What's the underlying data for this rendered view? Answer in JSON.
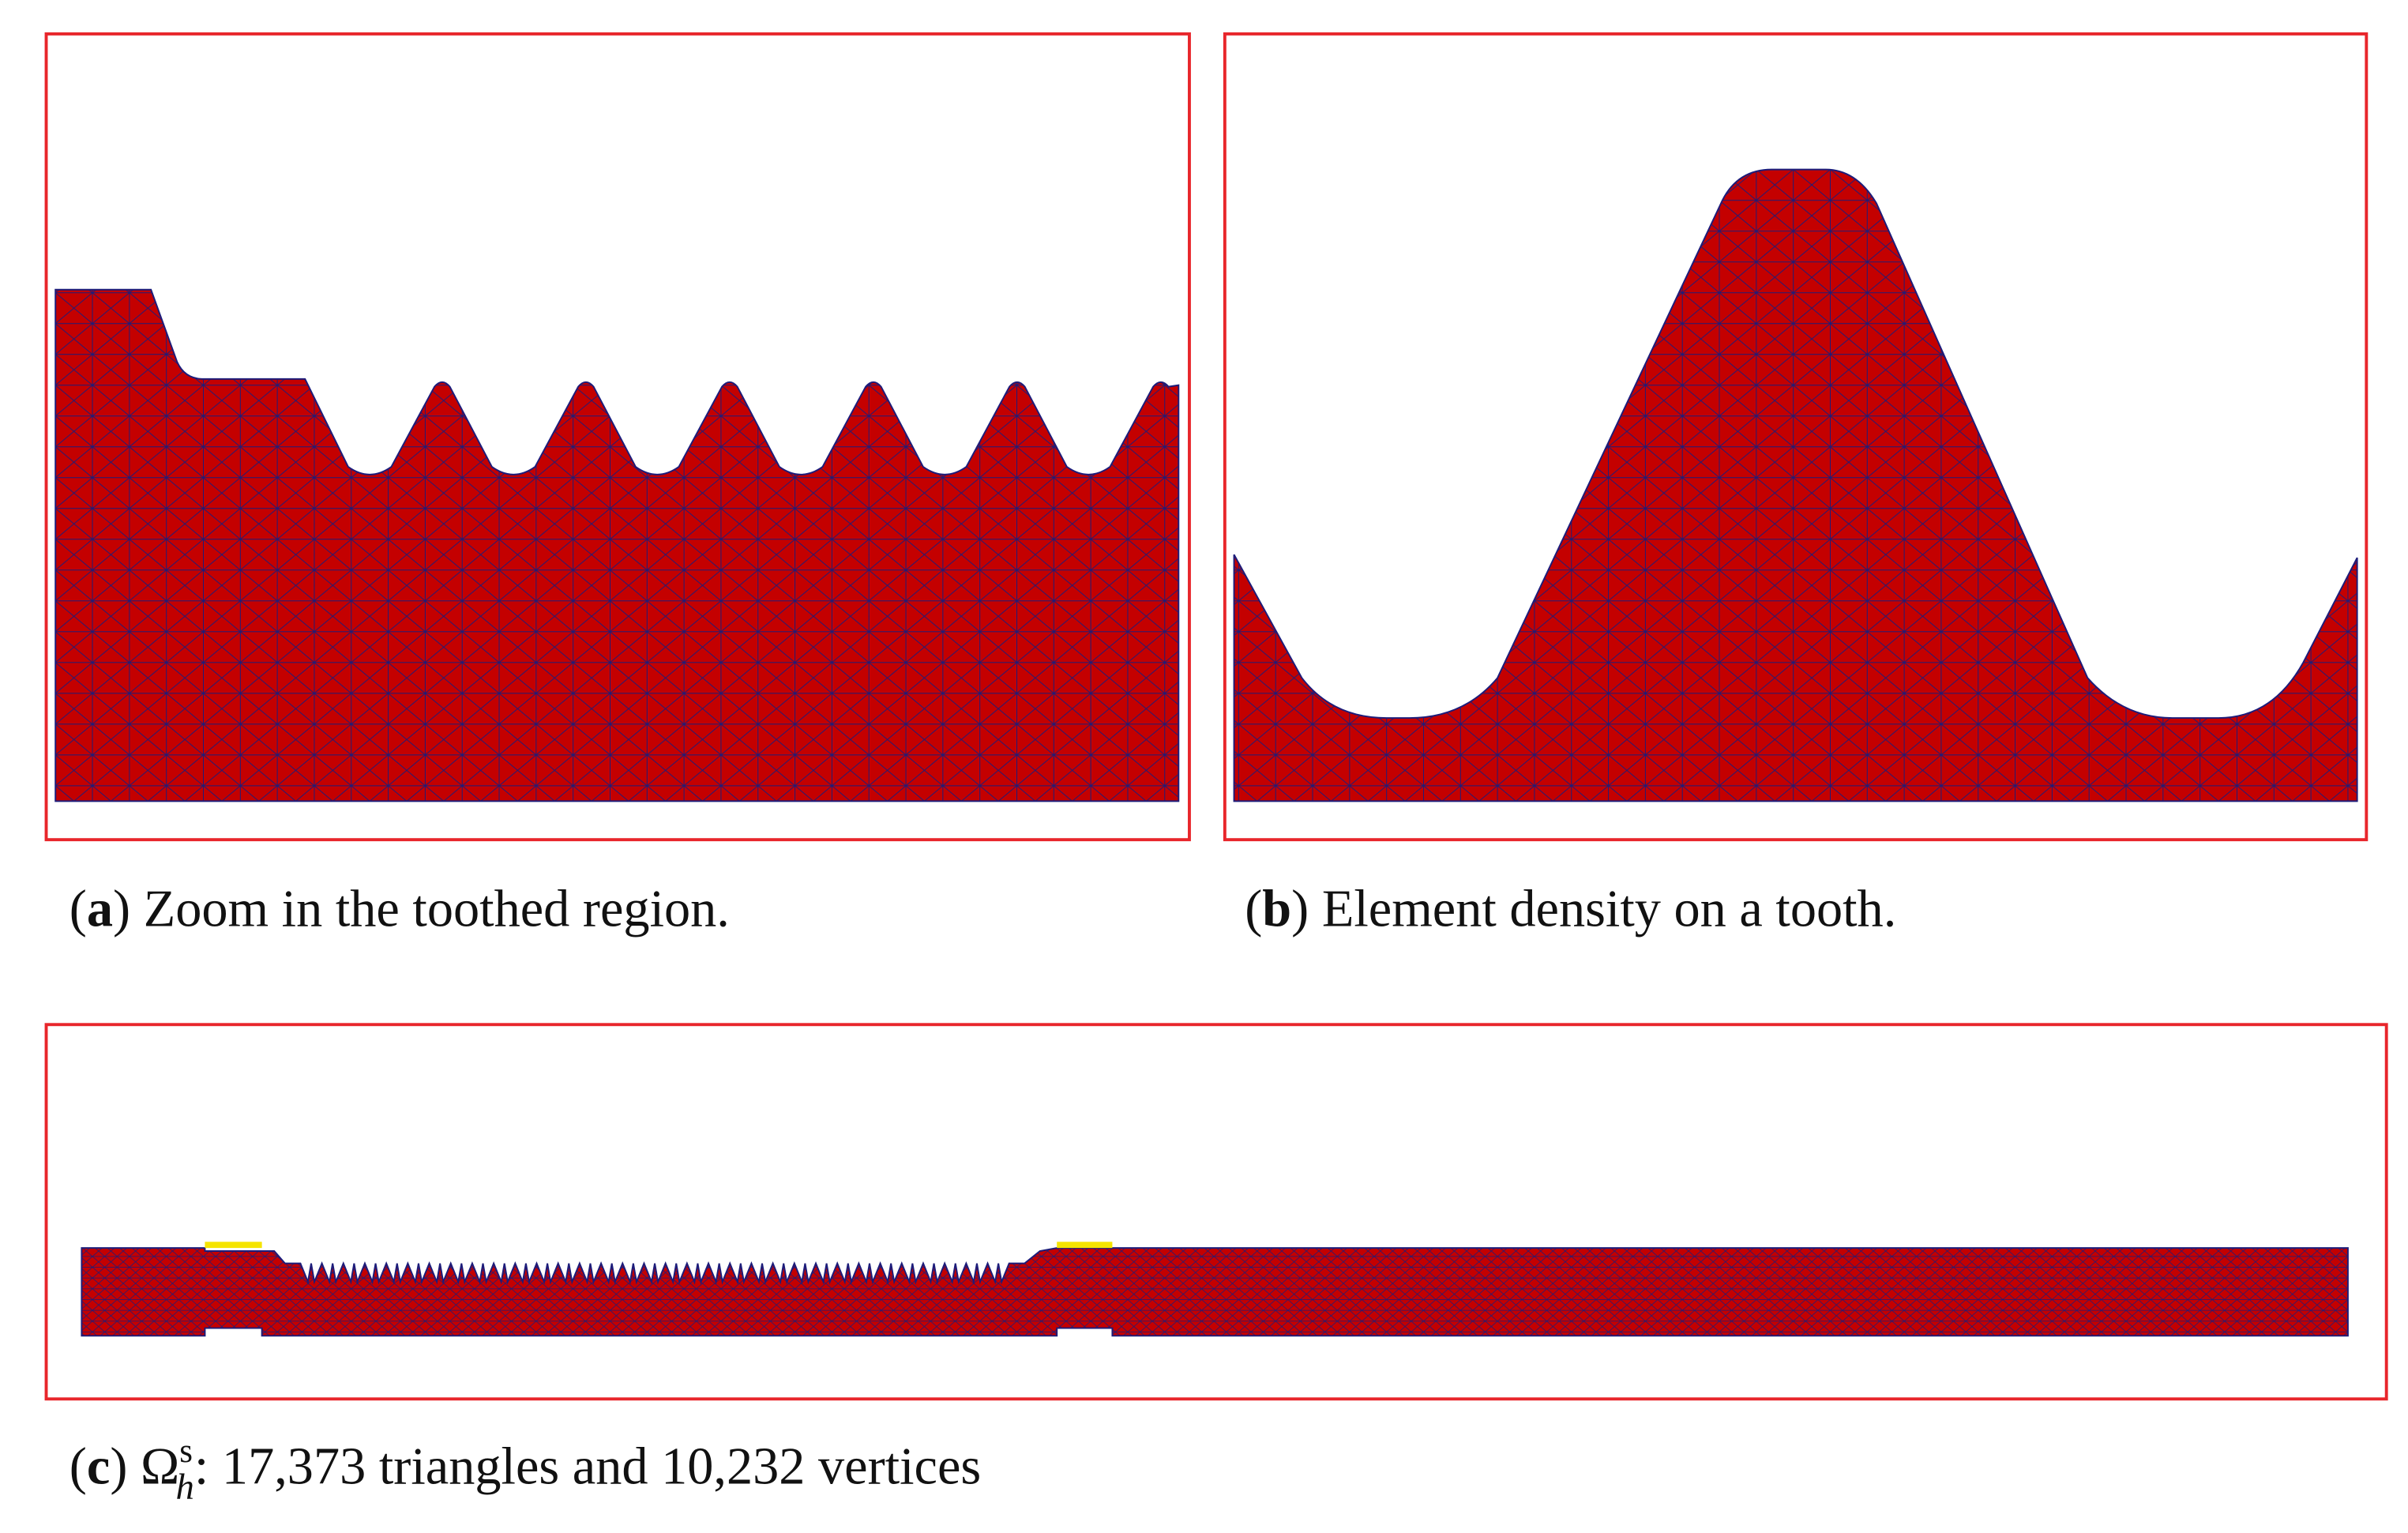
{
  "figure": {
    "panels": [
      {
        "caption": [
          "(",
          "a",
          ") Zoom in the toothed region."
        ]
      },
      {
        "caption": [
          "(",
          "b",
          ") Element density on a tooth."
        ]
      },
      {
        "caption": [
          "(",
          "c",
          ") Ω",
          "s",
          "h",
          ": 17,373 triangles and 10,232 vertices"
        ]
      }
    ]
  }
}
